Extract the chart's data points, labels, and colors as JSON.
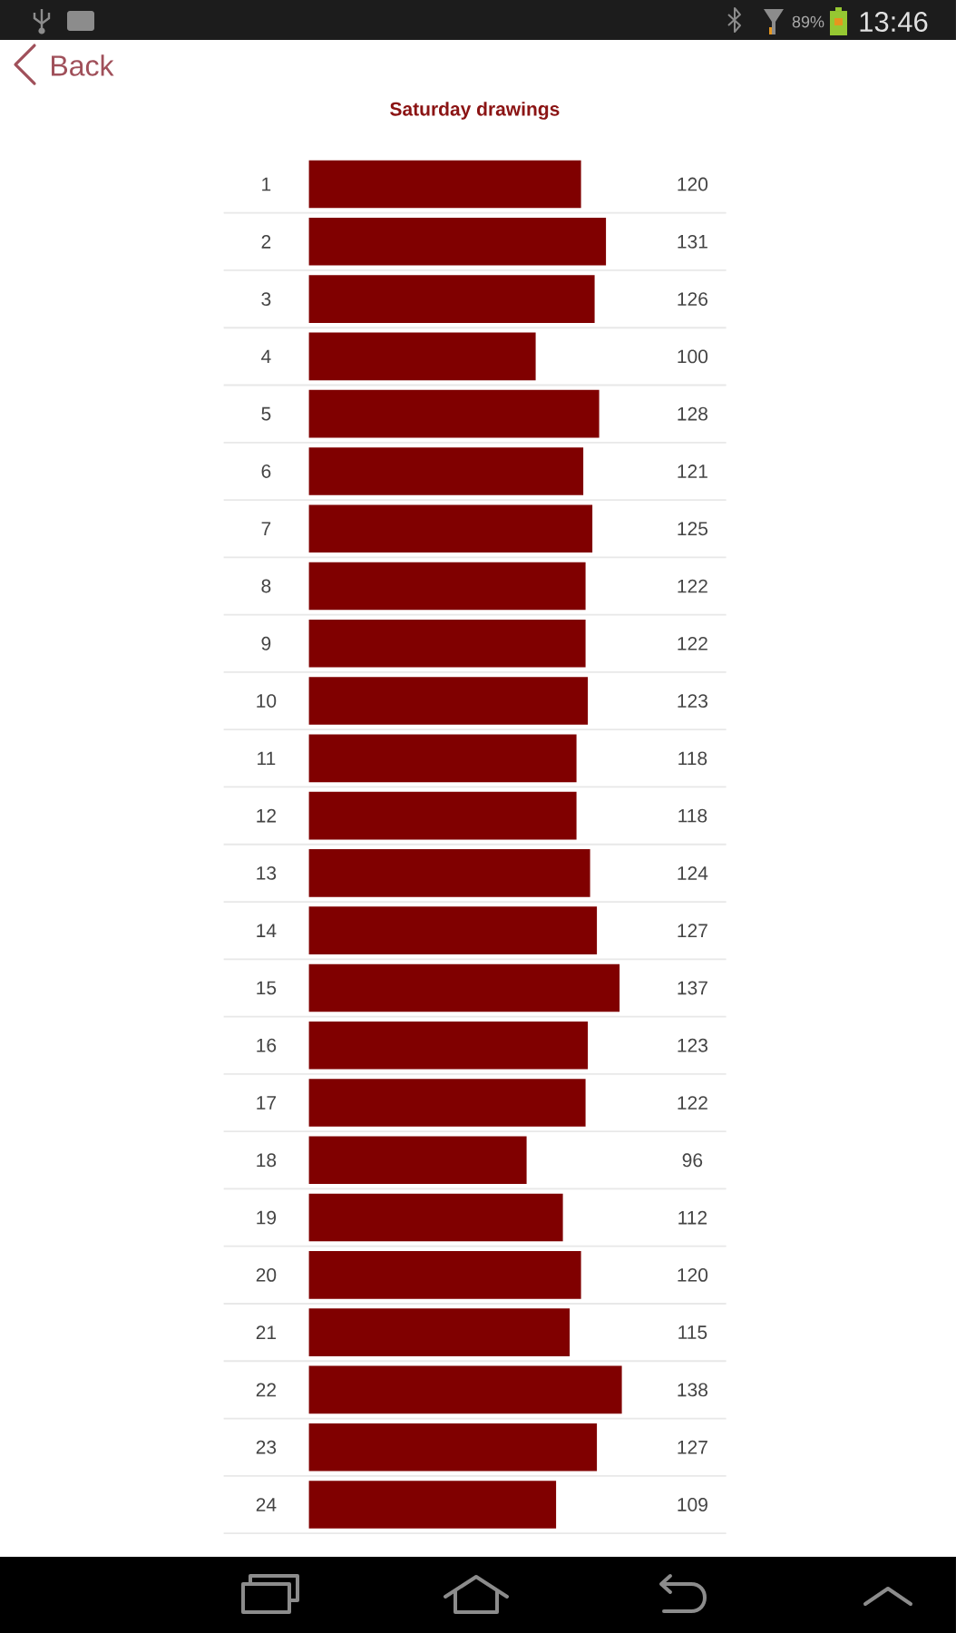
{
  "chart_data": {
    "type": "bar",
    "orientation": "horizontal",
    "title": "Saturday drawings",
    "categories": [
      "1",
      "2",
      "3",
      "4",
      "5",
      "6",
      "7",
      "8",
      "9",
      "10",
      "11",
      "12",
      "13",
      "14",
      "15",
      "16",
      "17",
      "18",
      "19",
      "20",
      "21",
      "22",
      "23",
      "24"
    ],
    "values": [
      120,
      131,
      126,
      100,
      128,
      121,
      125,
      122,
      122,
      123,
      118,
      118,
      124,
      127,
      137,
      123,
      122,
      96,
      112,
      120,
      115,
      138,
      127,
      109
    ],
    "color": "#800000",
    "data_labels": true,
    "grid": "y",
    "tick_labels": "y",
    "annotations": [
      "Back",
      "89%",
      "13:46"
    ]
  }
}
